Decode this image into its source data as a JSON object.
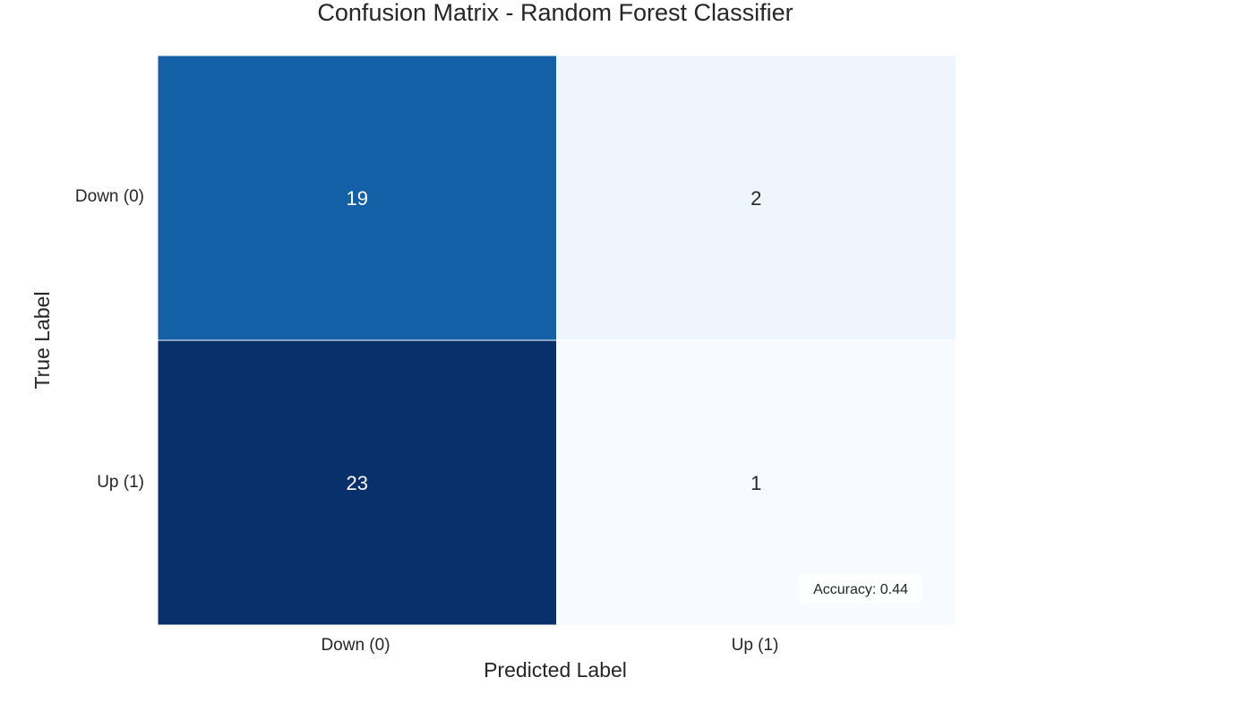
{
  "chart_data": {
    "type": "heatmap",
    "title": "Confusion Matrix - Random Forest Classifier",
    "xlabel": "Predicted Label",
    "ylabel": "True Label",
    "x_categories": [
      "Down (0)",
      "Up (1)"
    ],
    "y_categories": [
      "Down (0)",
      "Up (1)"
    ],
    "values": [
      [
        19,
        2
      ],
      [
        23,
        1
      ]
    ],
    "colormap": "Blues",
    "colorbar": false,
    "annotation": "Accuracy: 0.44"
  },
  "colors": {
    "cell_low": "#f7fbff",
    "cell_high": "#08306b",
    "text_dark": "#262626",
    "text_light": "#ffffff"
  }
}
